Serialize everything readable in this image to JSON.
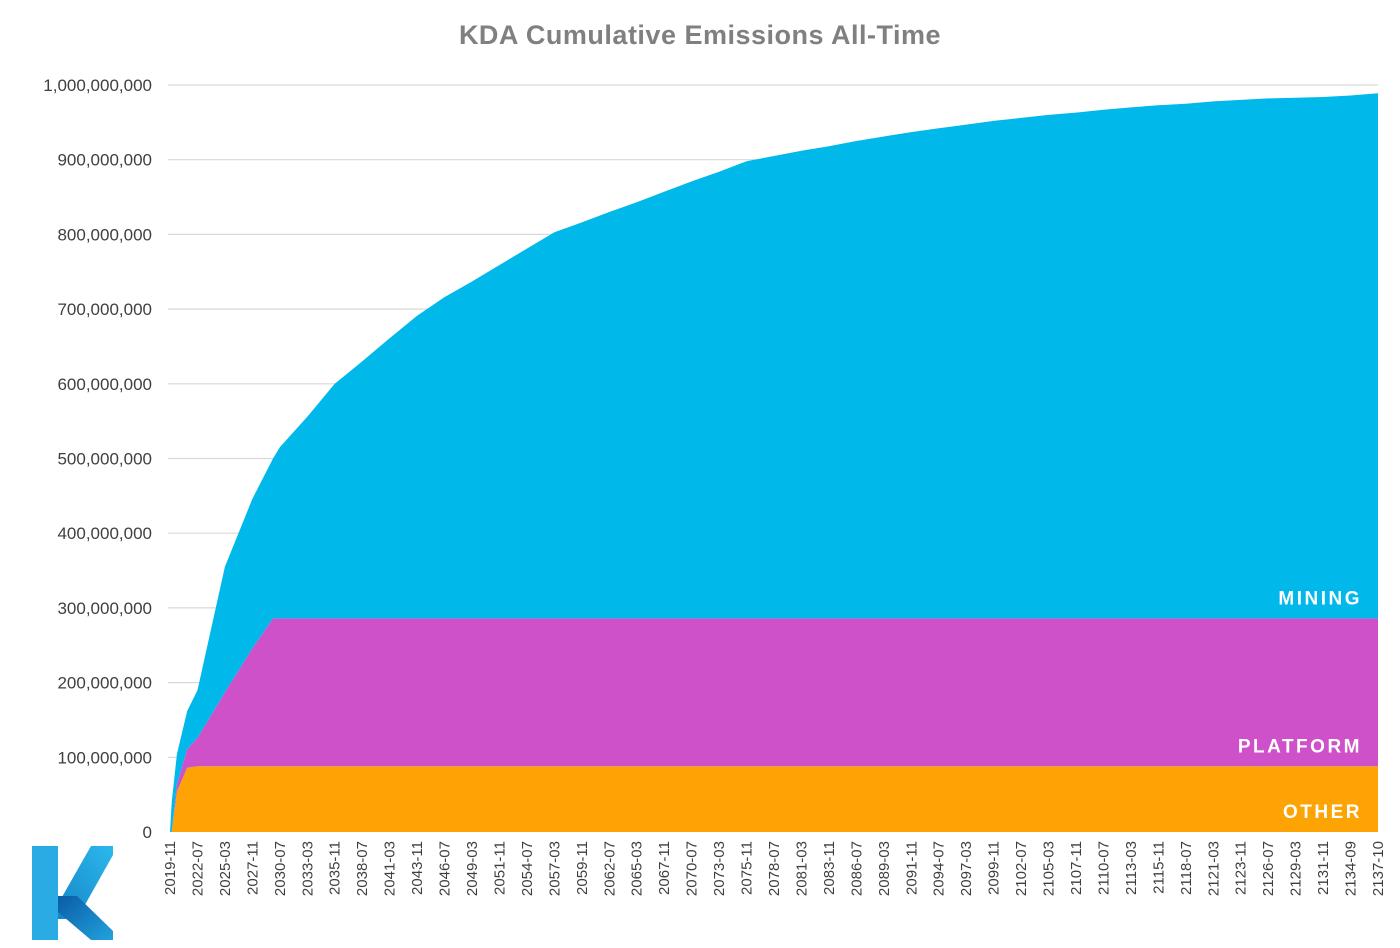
{
  "title": "KDA Cumulative Emissions All-Time",
  "logo": {
    "name": "kadena-k-logo"
  },
  "palette": {
    "grid_line": "#d9d9d9",
    "axis_text": "#3f3f3f",
    "title_text": "#808080",
    "series_label_text": "#ffffff",
    "logo_stem": "#2aabe3",
    "logo_upper_dark": "#1585c8",
    "logo_upper_light": "#2cb9ec",
    "logo_lower_dark": "#0a5ca6",
    "logo_lower_light": "#22a2dc"
  },
  "chart_data": {
    "type": "area",
    "stacked": true,
    "title": "KDA Cumulative Emissions All-Time",
    "unit_note": "cumulative KDA, sample values in millions",
    "ylim": [
      0,
      1000000000
    ],
    "y_max_millions": 1000,
    "y_tick_step": 100000000,
    "grid": true,
    "legend_position": "inside-right",
    "y_tick_labels": [
      "0",
      "100,000,000",
      "200,000,000",
      "300,000,000",
      "400,000,000",
      "500,000,000",
      "600,000,000",
      "700,000,000",
      "800,000,000",
      "900,000,000",
      "1,000,000,000"
    ],
    "x_tick_labels": [
      "2019-11",
      "2022-07",
      "2025-03",
      "2027-11",
      "2030-07",
      "2033-03",
      "2035-11",
      "2038-07",
      "2041-03",
      "2043-11",
      "2046-07",
      "2049-03",
      "2051-11",
      "2054-07",
      "2057-03",
      "2059-11",
      "2062-07",
      "2065-03",
      "2067-11",
      "2070-07",
      "2073-03",
      "2075-11",
      "2078-07",
      "2081-03",
      "2083-11",
      "2086-07",
      "2089-03",
      "2091-11",
      "2094-07",
      "2097-03",
      "2099-11",
      "2102-07",
      "2105-03",
      "2107-11",
      "2110-07",
      "2113-03",
      "2115-11",
      "2118-07",
      "2121-03",
      "2123-11",
      "2126-07",
      "2129-03",
      "2131-11",
      "2134-09",
      "2137-10"
    ],
    "series": [
      {
        "id": "other",
        "label": "OTHER",
        "color": "#fda304"
      },
      {
        "id": "platform",
        "label": "PLATFORM",
        "color": "#cf51c9"
      },
      {
        "id": "mining",
        "label": "MINING",
        "color": "#00b8ea"
      }
    ],
    "samples": {
      "columns": [
        "date",
        "other",
        "platform",
        "mining"
      ],
      "rows": [
        [
          "2019-11",
          0,
          0,
          0
        ],
        [
          "2020-01",
          0,
          0,
          40
        ],
        [
          "2020-07",
          54,
          10,
          40
        ],
        [
          "2021-07",
          86,
          25,
          51
        ],
        [
          "2022-07",
          88,
          38,
          64
        ],
        [
          "2025-03",
          88,
          99,
          168
        ],
        [
          "2027-11",
          88,
          158,
          200
        ],
        [
          "2029-11",
          88,
          198,
          214
        ],
        [
          "2030-07",
          88,
          198,
          229
        ],
        [
          "2033-03",
          88,
          198,
          270
        ],
        [
          "2035-11",
          88,
          198,
          314
        ],
        [
          "2038-07",
          88,
          198,
          344
        ],
        [
          "2041-03",
          88,
          198,
          375
        ],
        [
          "2043-11",
          88,
          198,
          405
        ],
        [
          "2046-07",
          88,
          198,
          430
        ],
        [
          "2049-03",
          88,
          198,
          451
        ],
        [
          "2051-11",
          88,
          198,
          473
        ],
        [
          "2054-07",
          88,
          198,
          495
        ],
        [
          "2057-03",
          88,
          198,
          517
        ],
        [
          "2059-11",
          88,
          198,
          530
        ],
        [
          "2062-07",
          88,
          198,
          544
        ],
        [
          "2065-03",
          88,
          198,
          557
        ],
        [
          "2067-11",
          88,
          198,
          571
        ],
        [
          "2070-07",
          88,
          198,
          585
        ],
        [
          "2073-03",
          88,
          198,
          598
        ],
        [
          "2075-11",
          88,
          198,
          612
        ],
        [
          "2078-07",
          88,
          198,
          619
        ],
        [
          "2081-03",
          88,
          198,
          626
        ],
        [
          "2083-11",
          88,
          198,
          632
        ],
        [
          "2086-07",
          88,
          198,
          639
        ],
        [
          "2089-03",
          88,
          198,
          645
        ],
        [
          "2091-11",
          88,
          198,
          651
        ],
        [
          "2094-07",
          88,
          198,
          656
        ],
        [
          "2097-03",
          88,
          198,
          661
        ],
        [
          "2099-11",
          88,
          198,
          666
        ],
        [
          "2102-07",
          88,
          198,
          670
        ],
        [
          "2105-03",
          88,
          198,
          674
        ],
        [
          "2107-11",
          88,
          198,
          677
        ],
        [
          "2110-07",
          88,
          198,
          681
        ],
        [
          "2113-03",
          88,
          198,
          684
        ],
        [
          "2115-11",
          88,
          198,
          687
        ],
        [
          "2118-07",
          88,
          198,
          689
        ],
        [
          "2121-03",
          88,
          198,
          692
        ],
        [
          "2123-11",
          88,
          198,
          694
        ],
        [
          "2126-07",
          88,
          198,
          696
        ],
        [
          "2129-03",
          88,
          198,
          697
        ],
        [
          "2131-11",
          88,
          198,
          698
        ],
        [
          "2134-09",
          88,
          198,
          700
        ],
        [
          "2137-10",
          88,
          198,
          703
        ]
      ]
    }
  }
}
